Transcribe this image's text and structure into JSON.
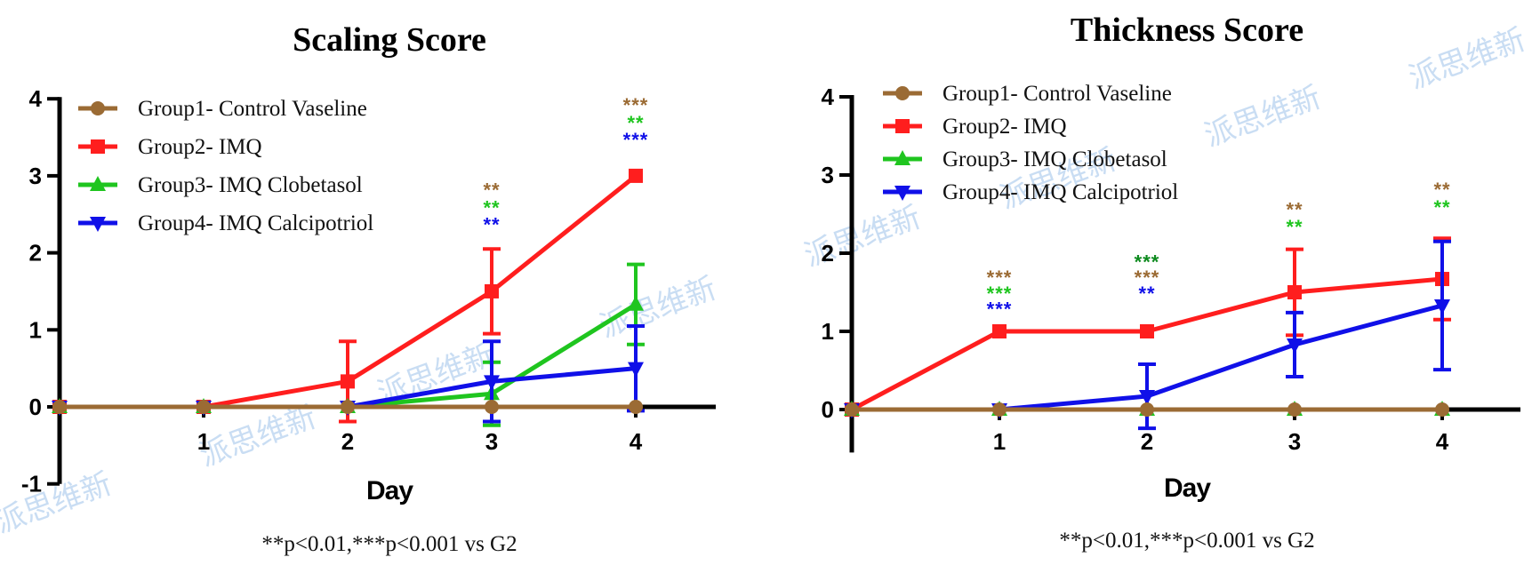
{
  "colors": {
    "g1": "#9b6b34",
    "g2": "#ff1e1e",
    "g3": "#1fc51f",
    "g4": "#1010e8",
    "star_dark_green": "#0d8a1e"
  },
  "watermark": "派思维新",
  "chart_data": [
    {
      "type": "line",
      "title": "Scaling Score",
      "xlabel": "Day",
      "ylabel": "",
      "x": [
        0,
        1,
        2,
        3,
        4
      ],
      "x_tick_labels": [
        "1",
        "2",
        "3",
        "4"
      ],
      "y_tick_labels": [
        "-1",
        "0",
        "1",
        "2",
        "3",
        "4"
      ],
      "ylim": [
        -1,
        4
      ],
      "xlim": [
        0,
        4.5
      ],
      "footnote": "**p<0.01,***p<0.001 vs G2",
      "legend_position": "top-left",
      "series": [
        {
          "name": "Group1- Control Vaseline",
          "color_key": "g1",
          "marker": "circle",
          "values": [
            0,
            0,
            0,
            0,
            0
          ],
          "err": [
            0,
            0,
            0,
            0,
            0
          ]
        },
        {
          "name": "Group2- IMQ",
          "color_key": "g2",
          "marker": "square",
          "values": [
            0,
            0,
            0.33,
            1.5,
            3.0
          ],
          "err": [
            0,
            0,
            0.52,
            0.55,
            0
          ]
        },
        {
          "name": "Group3- IMQ Clobetasol",
          "color_key": "g3",
          "marker": "triangle-up",
          "values": [
            0,
            0,
            0,
            0.17,
            1.33
          ],
          "err": [
            0,
            0,
            0,
            0.41,
            0.52
          ]
        },
        {
          "name": "Group4- IMQ  Calcipotriol",
          "color_key": "g4",
          "marker": "triangle-down",
          "values": [
            0,
            0,
            0,
            0.33,
            0.5
          ],
          "err": [
            0,
            0,
            0,
            0.52,
            0.55
          ]
        }
      ],
      "annotations": [
        {
          "x": 3,
          "y": 2.73,
          "text": "**",
          "color_key": "g1"
        },
        {
          "x": 3,
          "y": 2.5,
          "text": "**",
          "color_key": "g3"
        },
        {
          "x": 3,
          "y": 2.28,
          "text": "**",
          "color_key": "g4"
        },
        {
          "x": 4,
          "y": 3.83,
          "text": "***",
          "color_key": "g1"
        },
        {
          "x": 4,
          "y": 3.6,
          "text": "**",
          "color_key": "g3"
        },
        {
          "x": 4,
          "y": 3.38,
          "text": "***",
          "color_key": "g4"
        }
      ]
    },
    {
      "type": "line",
      "title": "Thickness Score",
      "xlabel": "Day",
      "ylabel": "",
      "x": [
        0,
        1,
        2,
        3,
        4
      ],
      "x_tick_labels": [
        "1",
        "2",
        "3",
        "4"
      ],
      "y_tick_labels": [
        "0",
        "1",
        "2",
        "3",
        "4"
      ],
      "ylim": [
        -0.55,
        4
      ],
      "xlim": [
        0,
        4.55
      ],
      "footnote": "**p<0.01,***p<0.001 vs G2",
      "legend_position": "top-left",
      "series": [
        {
          "name": "Group1- Control Vaseline",
          "color_key": "g1",
          "marker": "circle",
          "values": [
            0,
            0,
            0,
            0,
            0
          ],
          "err": [
            0,
            0,
            0,
            0,
            0
          ]
        },
        {
          "name": "Group2- IMQ",
          "color_key": "g2",
          "marker": "square",
          "values": [
            0,
            1.0,
            1.0,
            1.5,
            1.67
          ],
          "err": [
            0,
            0,
            0,
            0.55,
            0.52
          ]
        },
        {
          "name": "Group3- IMQ Clobetasol",
          "color_key": "g3",
          "marker": "triangle-up",
          "values": [
            0,
            0,
            0,
            0,
            0
          ],
          "err": [
            0,
            0,
            0,
            0,
            0
          ]
        },
        {
          "name": "Group4- IMQ  Calcipotriol",
          "color_key": "g4",
          "marker": "triangle-down",
          "values": [
            0,
            0,
            0.17,
            0.83,
            1.33
          ],
          "err": [
            0,
            0,
            0.41,
            0.41,
            0.82
          ]
        }
      ],
      "annotations": [
        {
          "x": 1,
          "y": 1.6,
          "text": "***",
          "color_key": "g1"
        },
        {
          "x": 1,
          "y": 1.4,
          "text": "***",
          "color_key": "g3"
        },
        {
          "x": 1,
          "y": 1.2,
          "text": "***",
          "color_key": "g4"
        },
        {
          "x": 2,
          "y": 1.8,
          "text": "***",
          "color_key": "star_dark_green"
        },
        {
          "x": 2,
          "y": 1.6,
          "text": "***",
          "color_key": "g1"
        },
        {
          "x": 2,
          "y": 1.4,
          "text": "**",
          "color_key": "g4"
        },
        {
          "x": 3,
          "y": 2.47,
          "text": "**",
          "color_key": "g1"
        },
        {
          "x": 3,
          "y": 2.25,
          "text": "**",
          "color_key": "g3"
        },
        {
          "x": 4,
          "y": 2.73,
          "text": "**",
          "color_key": "g1"
        },
        {
          "x": 4,
          "y": 2.5,
          "text": "**",
          "color_key": "g3"
        }
      ]
    }
  ]
}
